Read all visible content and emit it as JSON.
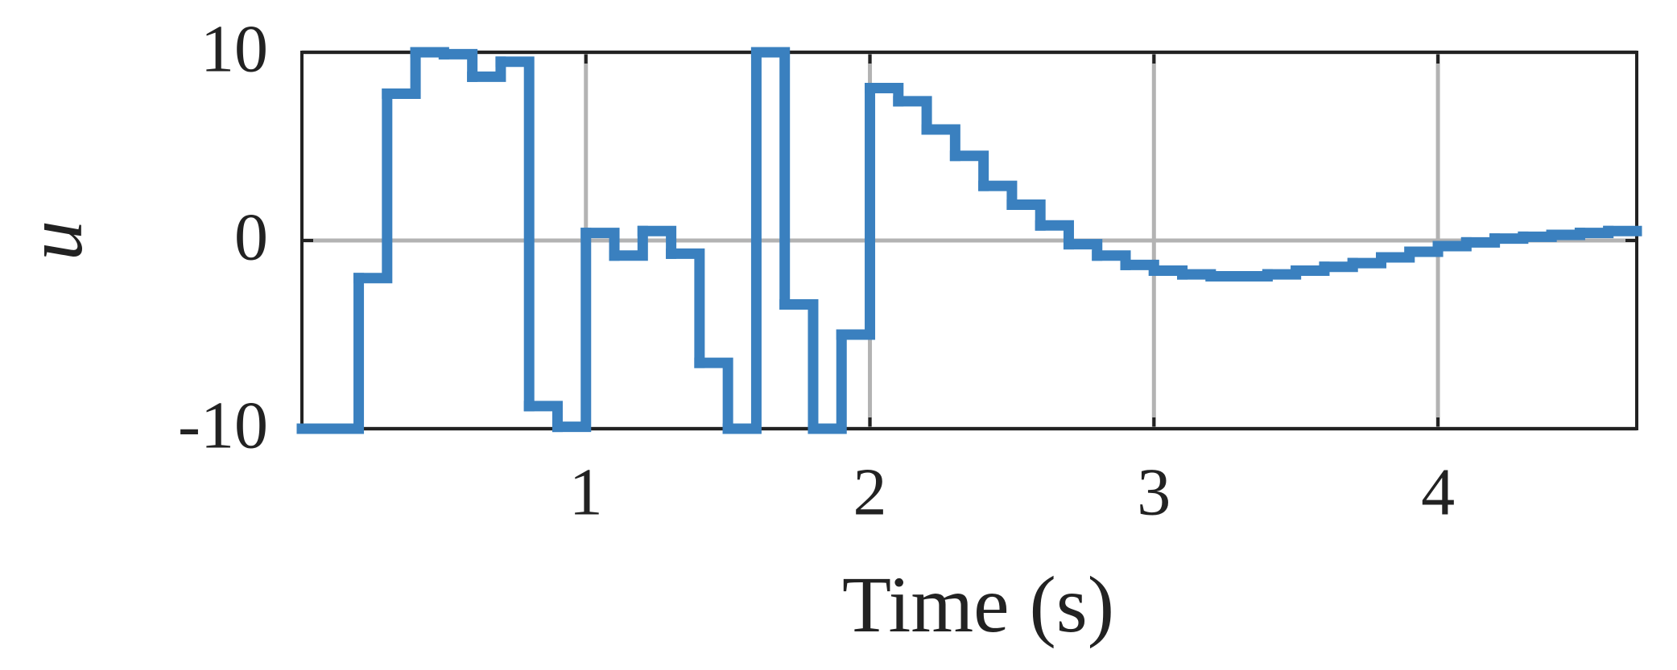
{
  "chart_data": {
    "type": "line",
    "step": "post",
    "x_label": "Time (s)",
    "y_label": "u",
    "x": [
      0,
      0.1,
      0.2,
      0.3,
      0.4,
      0.5,
      0.6,
      0.7,
      0.8,
      0.9,
      1.0,
      1.1,
      1.2,
      1.3,
      1.4,
      1.5,
      1.6,
      1.7,
      1.8,
      1.9,
      2.0,
      2.1,
      2.2,
      2.3,
      2.4,
      2.5,
      2.6,
      2.7,
      2.8,
      2.9,
      3.0,
      3.1,
      3.2,
      3.3,
      3.4,
      3.5,
      3.6,
      3.7,
      3.8,
      3.9,
      4.0,
      4.1,
      4.2,
      4.3,
      4.4,
      4.5,
      4.6
    ],
    "values": [
      -10,
      -10,
      -2,
      7.8,
      10,
      9.9,
      8.7,
      9.5,
      -8.8,
      -9.9,
      0.4,
      -0.8,
      0.5,
      -0.7,
      -6.5,
      -10,
      10,
      -3.4,
      -10,
      -5,
      8.1,
      7.4,
      5.9,
      4.5,
      2.9,
      1.9,
      0.8,
      -0.2,
      -0.8,
      -1.3,
      -1.6,
      -1.8,
      -1.9,
      -1.9,
      -1.8,
      -1.6,
      -1.4,
      -1.2,
      -0.9,
      -0.6,
      -0.3,
      -0.1,
      0.1,
      0.2,
      0.3,
      0.4,
      0.5
    ],
    "color": "#3a80bf",
    "xlim": [
      0,
      4.7
    ],
    "ylim": [
      -10,
      10
    ],
    "xticks": [
      1,
      2,
      3,
      4
    ],
    "yticks": [
      -10,
      0,
      10
    ],
    "grid": true
  }
}
